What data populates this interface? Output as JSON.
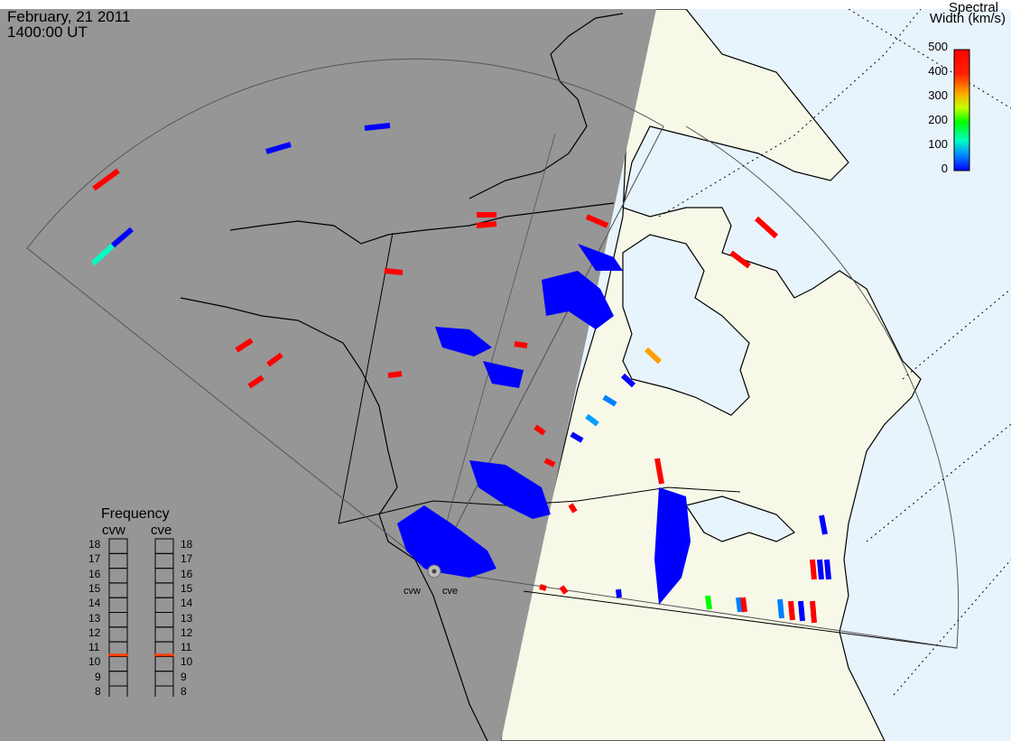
{
  "header": {
    "date": "February, 21 2011",
    "time": "1400:00 UT"
  },
  "colorbar": {
    "title_line1": "Spectral",
    "title_line2": "Width (km/s)",
    "ticks": [
      "500",
      "400",
      "300",
      "200",
      "100",
      "0"
    ],
    "colors": [
      "#ff0000",
      "#ffa000",
      "#ffff00",
      "#00ff00",
      "#00ffc0",
      "#0080ff",
      "#0000ff"
    ]
  },
  "frequency": {
    "title": "Frequency",
    "radars": [
      "cvw",
      "cve"
    ],
    "scale": [
      "18",
      "17",
      "16",
      "15",
      "14",
      "13",
      "12",
      "11",
      "10",
      "9",
      "8"
    ],
    "cvw_mhz": 10.6,
    "cve_mhz": 10.6
  },
  "sites": {
    "cvw": "cvw",
    "cve": "cve"
  },
  "map_colors": {
    "night": "#969696",
    "land_day": "#f8f8e8",
    "ocean_day": "#e8f4fc",
    "marker": "#ff4000"
  }
}
